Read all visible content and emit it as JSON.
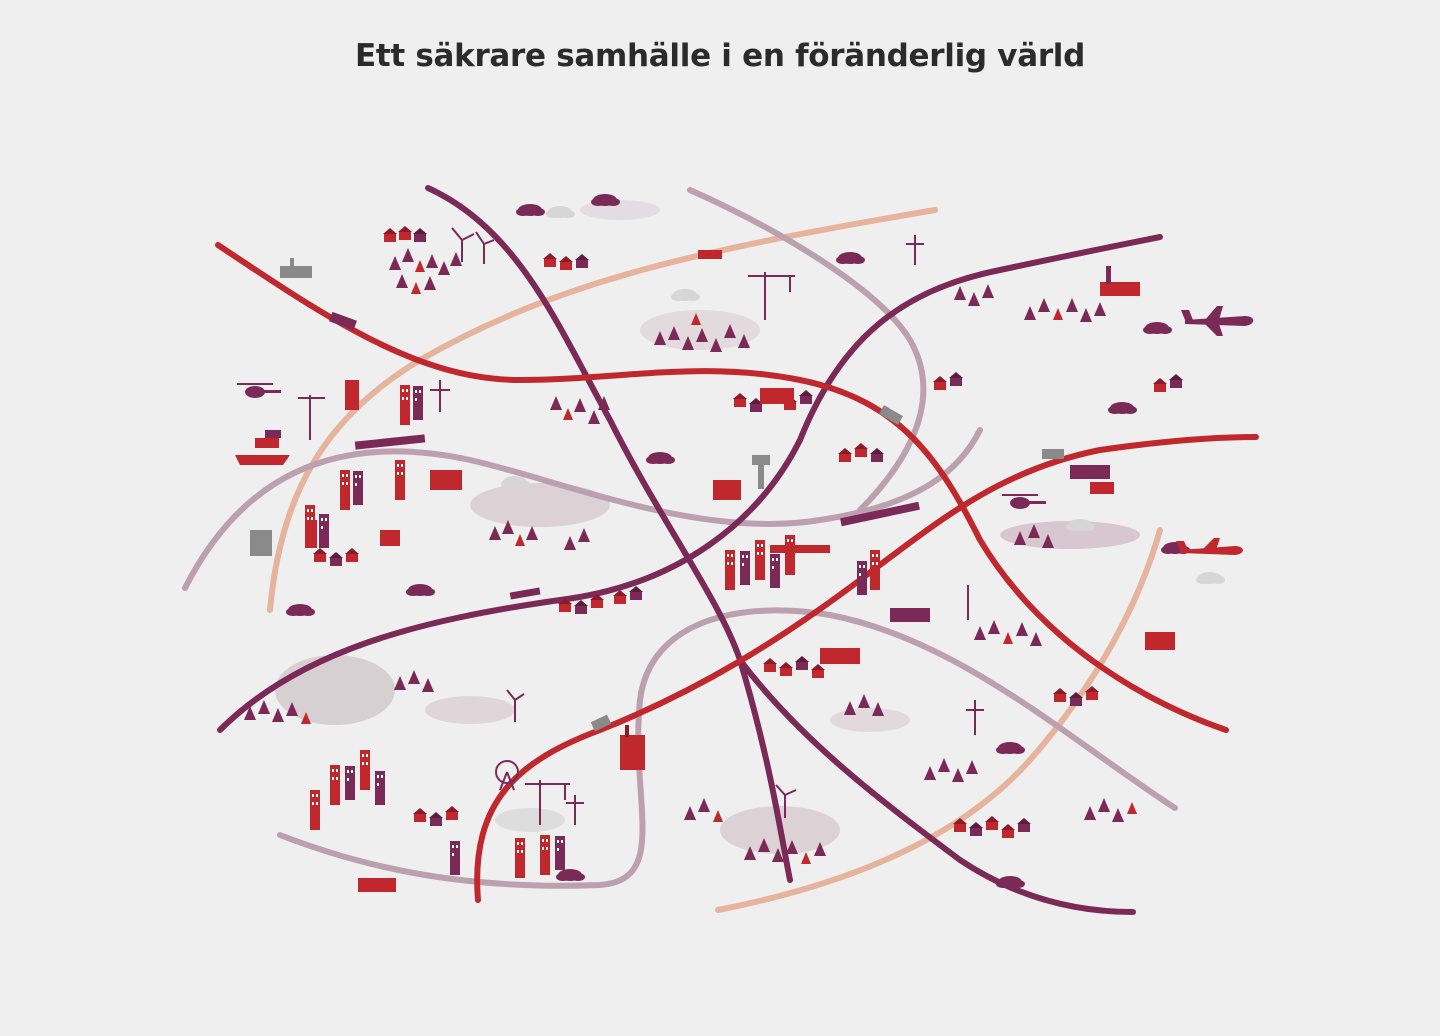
{
  "page": {
    "title": "Ett säkrare samhälle i en föränderlig värld"
  },
  "illustration": {
    "background_color": "#efefef",
    "colors": {
      "red": "#c0282d",
      "plum": "#7b2a57",
      "mauve": "#b99aa8",
      "peach": "#e2b19a",
      "dark_red": "#8c1a2a",
      "grey": "#8a8a8a",
      "light_grey": "#d9d9d9"
    },
    "route_lines": [
      {
        "id": "route-red-1",
        "color": "red"
      },
      {
        "id": "route-red-2",
        "color": "red"
      },
      {
        "id": "route-red-3",
        "color": "red"
      },
      {
        "id": "route-plum-1",
        "color": "plum"
      },
      {
        "id": "route-plum-2",
        "color": "plum"
      },
      {
        "id": "route-plum-3",
        "color": "plum"
      },
      {
        "id": "route-mauve-1",
        "color": "mauve"
      },
      {
        "id": "route-mauve-2",
        "color": "mauve"
      },
      {
        "id": "route-mauve-3",
        "color": "mauve"
      },
      {
        "id": "route-mauve-4",
        "color": "mauve"
      },
      {
        "id": "route-peach-1",
        "color": "peach"
      },
      {
        "id": "route-peach-2",
        "color": "peach"
      }
    ],
    "icons": [
      "airplane-icon",
      "helicopter-icon",
      "wind-turbine-icon",
      "crane-icon",
      "factory-icon",
      "water-tower-icon",
      "ferris-wheel-icon",
      "ship-icon",
      "truck-icon",
      "train-icon",
      "house-icon",
      "tree-icon",
      "cloud-icon"
    ]
  }
}
